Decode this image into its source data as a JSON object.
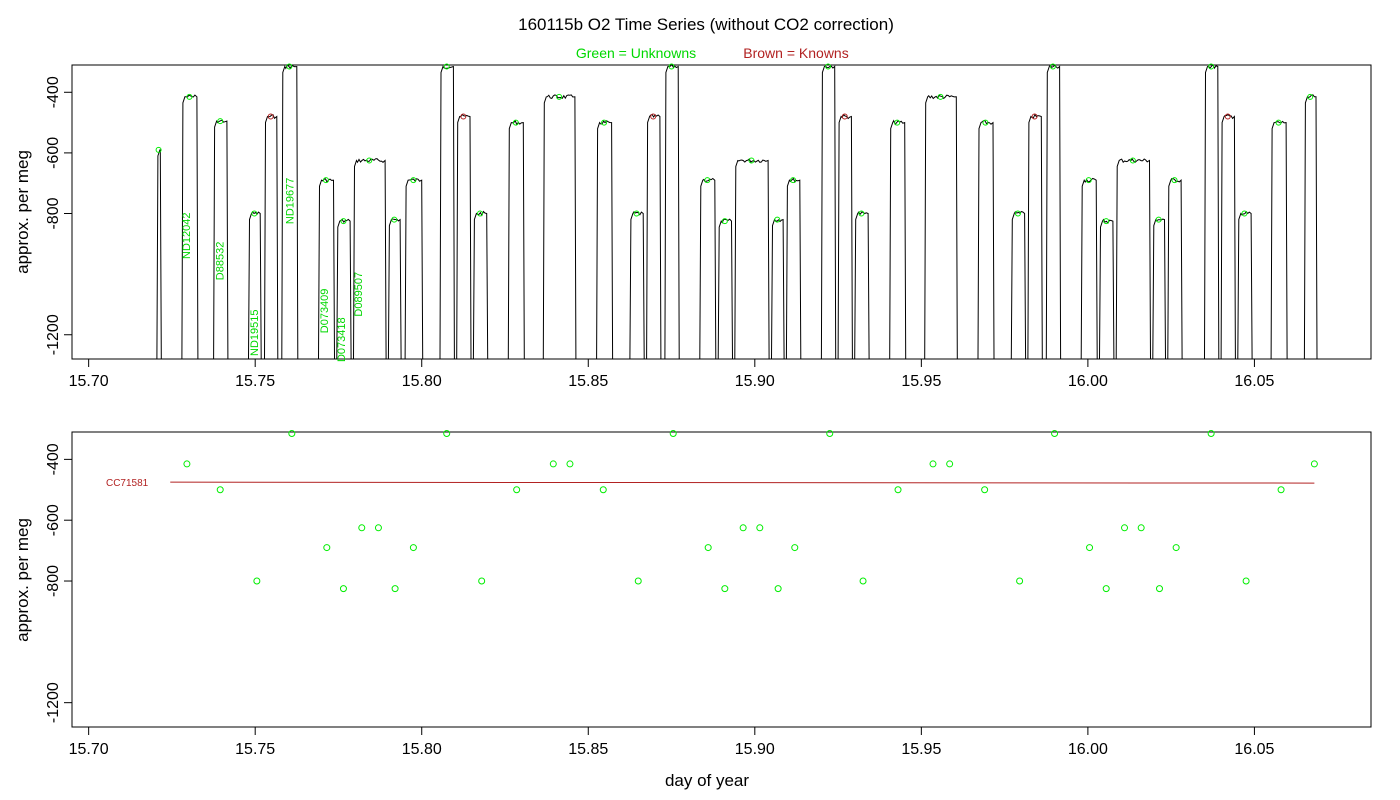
{
  "title": "160115b   O2 Time Series (without CO2 correction)",
  "legend": {
    "green": "Green = Unknowns",
    "brown": "Brown = Knowns",
    "green_color": "#00ee00",
    "brown_color": "#b22222"
  },
  "chart_data": [
    {
      "type": "line",
      "panel": "top",
      "xlabel": "",
      "ylabel": "approx. per meg",
      "xlim": [
        15.695,
        16.085
      ],
      "ylim": [
        -1280,
        -310
      ],
      "y_reversed": true,
      "x_ticks": [
        "15.70",
        "15.75",
        "15.80",
        "15.85",
        "15.90",
        "15.95",
        "16.00",
        "16.05"
      ],
      "x_tick_values": [
        15.7,
        15.75,
        15.8,
        15.85,
        15.9,
        15.95,
        16.0,
        16.05
      ],
      "y_ticks": [
        "-400",
        "-600",
        "-800",
        "-1200"
      ],
      "y_tick_values": [
        -400,
        -600,
        -800,
        -1200
      ],
      "trace_segments": [
        {
          "x0": 15.7205,
          "x1": 15.7215,
          "y": -590
        },
        {
          "x0": 15.728,
          "x1": 15.7325,
          "y": -415
        },
        {
          "x0": 15.7375,
          "x1": 15.7415,
          "y": -495
        },
        {
          "x0": 15.748,
          "x1": 15.7515,
          "y": -800
        },
        {
          "x0": 15.7528,
          "x1": 15.7565,
          "y": -480
        },
        {
          "x0": 15.758,
          "x1": 15.7625,
          "y": -315
        },
        {
          "x0": 15.769,
          "x1": 15.7735,
          "y": -690
        },
        {
          "x0": 15.7745,
          "x1": 15.7785,
          "y": -825
        },
        {
          "x0": 15.7795,
          "x1": 15.789,
          "y": -625
        },
        {
          "x0": 15.79,
          "x1": 15.7935,
          "y": -820
        },
        {
          "x0": 15.795,
          "x1": 15.8,
          "y": -690
        },
        {
          "x0": 15.8055,
          "x1": 15.8095,
          "y": -315
        },
        {
          "x0": 15.8105,
          "x1": 15.8145,
          "y": -480
        },
        {
          "x0": 15.8155,
          "x1": 15.8195,
          "y": -800
        },
        {
          "x0": 15.826,
          "x1": 15.8305,
          "y": -500
        },
        {
          "x0": 15.8365,
          "x1": 15.846,
          "y": -415
        },
        {
          "x0": 15.8525,
          "x1": 15.857,
          "y": -500
        },
        {
          "x0": 15.8625,
          "x1": 15.8665,
          "y": -800
        },
        {
          "x0": 15.8675,
          "x1": 15.8715,
          "y": -480
        },
        {
          "x0": 15.873,
          "x1": 15.877,
          "y": -315
        },
        {
          "x0": 15.8835,
          "x1": 15.888,
          "y": -690
        },
        {
          "x0": 15.889,
          "x1": 15.893,
          "y": -825
        },
        {
          "x0": 15.894,
          "x1": 15.904,
          "y": -625
        },
        {
          "x0": 15.905,
          "x1": 15.9085,
          "y": -820
        },
        {
          "x0": 15.9095,
          "x1": 15.9135,
          "y": -690
        },
        {
          "x0": 15.92,
          "x1": 15.924,
          "y": -315
        },
        {
          "x0": 15.925,
          "x1": 15.929,
          "y": -480
        },
        {
          "x0": 15.93,
          "x1": 15.934,
          "y": -800
        },
        {
          "x0": 15.9405,
          "x1": 15.945,
          "y": -500
        },
        {
          "x0": 15.951,
          "x1": 15.9605,
          "y": -415
        },
        {
          "x0": 15.967,
          "x1": 15.9715,
          "y": -500
        },
        {
          "x0": 15.977,
          "x1": 15.981,
          "y": -800
        },
        {
          "x0": 15.982,
          "x1": 15.986,
          "y": -480
        },
        {
          "x0": 15.9875,
          "x1": 15.9915,
          "y": -315
        },
        {
          "x0": 15.998,
          "x1": 16.0025,
          "y": -690
        },
        {
          "x0": 16.0035,
          "x1": 16.0075,
          "y": -825
        },
        {
          "x0": 16.0085,
          "x1": 16.0185,
          "y": -625
        },
        {
          "x0": 16.0195,
          "x1": 16.023,
          "y": -820
        },
        {
          "x0": 16.024,
          "x1": 16.028,
          "y": -690
        },
        {
          "x0": 16.035,
          "x1": 16.039,
          "y": -315
        },
        {
          "x0": 16.04,
          "x1": 16.044,
          "y": -480
        },
        {
          "x0": 16.045,
          "x1": 16.049,
          "y": -800
        },
        {
          "x0": 16.055,
          "x1": 16.0595,
          "y": -500
        },
        {
          "x0": 16.065,
          "x1": 16.0685,
          "y": -415
        }
      ],
      "sample_labels": [
        {
          "text": "ND12042",
          "x": 15.7305,
          "y": -950
        },
        {
          "text": "D88532",
          "x": 15.7405,
          "y": -1020
        },
        {
          "text": "ND19515",
          "x": 15.7508,
          "y": -1270
        },
        {
          "text": "ND19677",
          "x": 15.7615,
          "y": -835
        },
        {
          "text": "D073409",
          "x": 15.7718,
          "y": -1195
        },
        {
          "text": "D073418",
          "x": 15.777,
          "y": -1290
        },
        {
          "text": "D089507",
          "x": 15.782,
          "y": -1140
        }
      ]
    },
    {
      "type": "scatter",
      "panel": "bottom",
      "xlabel": "day of year",
      "ylabel": "approx. per meg",
      "xlim": [
        15.695,
        16.085
      ],
      "ylim": [
        -1280,
        -310
      ],
      "y_reversed": true,
      "x_ticks": [
        "15.70",
        "15.75",
        "15.80",
        "15.85",
        "15.90",
        "15.95",
        "16.00",
        "16.05"
      ],
      "x_tick_values": [
        15.7,
        15.75,
        15.8,
        15.85,
        15.9,
        15.95,
        16.0,
        16.05
      ],
      "y_ticks": [
        "-400",
        "-600",
        "-800",
        "-1200"
      ],
      "y_tick_values": [
        -400,
        -600,
        -800,
        -1200
      ],
      "unknowns": [
        {
          "x": 15.7295,
          "y": -415
        },
        {
          "x": 15.7395,
          "y": -500
        },
        {
          "x": 15.7505,
          "y": -800
        },
        {
          "x": 15.761,
          "y": -315
        },
        {
          "x": 15.7715,
          "y": -690
        },
        {
          "x": 15.7765,
          "y": -825
        },
        {
          "x": 15.782,
          "y": -625
        },
        {
          "x": 15.787,
          "y": -625
        },
        {
          "x": 15.792,
          "y": -825
        },
        {
          "x": 15.7975,
          "y": -690
        },
        {
          "x": 15.8075,
          "y": -315
        },
        {
          "x": 15.818,
          "y": -800
        },
        {
          "x": 15.8285,
          "y": -500
        },
        {
          "x": 15.8395,
          "y": -415
        },
        {
          "x": 15.8445,
          "y": -415
        },
        {
          "x": 15.8545,
          "y": -500
        },
        {
          "x": 15.865,
          "y": -800
        },
        {
          "x": 15.8755,
          "y": -315
        },
        {
          "x": 15.886,
          "y": -690
        },
        {
          "x": 15.891,
          "y": -825
        },
        {
          "x": 15.8965,
          "y": -625
        },
        {
          "x": 15.9015,
          "y": -625
        },
        {
          "x": 15.907,
          "y": -825
        },
        {
          "x": 15.912,
          "y": -690
        },
        {
          "x": 15.9225,
          "y": -315
        },
        {
          "x": 15.9325,
          "y": -800
        },
        {
          "x": 15.943,
          "y": -500
        },
        {
          "x": 15.9535,
          "y": -415
        },
        {
          "x": 15.9585,
          "y": -415
        },
        {
          "x": 15.969,
          "y": -500
        },
        {
          "x": 15.9795,
          "y": -800
        },
        {
          "x": 15.99,
          "y": -315
        },
        {
          "x": 16.0005,
          "y": -690
        },
        {
          "x": 16.0055,
          "y": -825
        },
        {
          "x": 16.011,
          "y": -625
        },
        {
          "x": 16.016,
          "y": -625
        },
        {
          "x": 16.0215,
          "y": -825
        },
        {
          "x": 16.0265,
          "y": -690
        },
        {
          "x": 16.037,
          "y": -315
        },
        {
          "x": 16.0475,
          "y": -800
        },
        {
          "x": 16.058,
          "y": -500
        },
        {
          "x": 16.068,
          "y": -415
        }
      ],
      "known_fit": {
        "name": "CC71581",
        "x0": 15.7245,
        "x1": 16.068,
        "y0": -475,
        "y1": -478
      }
    }
  ]
}
